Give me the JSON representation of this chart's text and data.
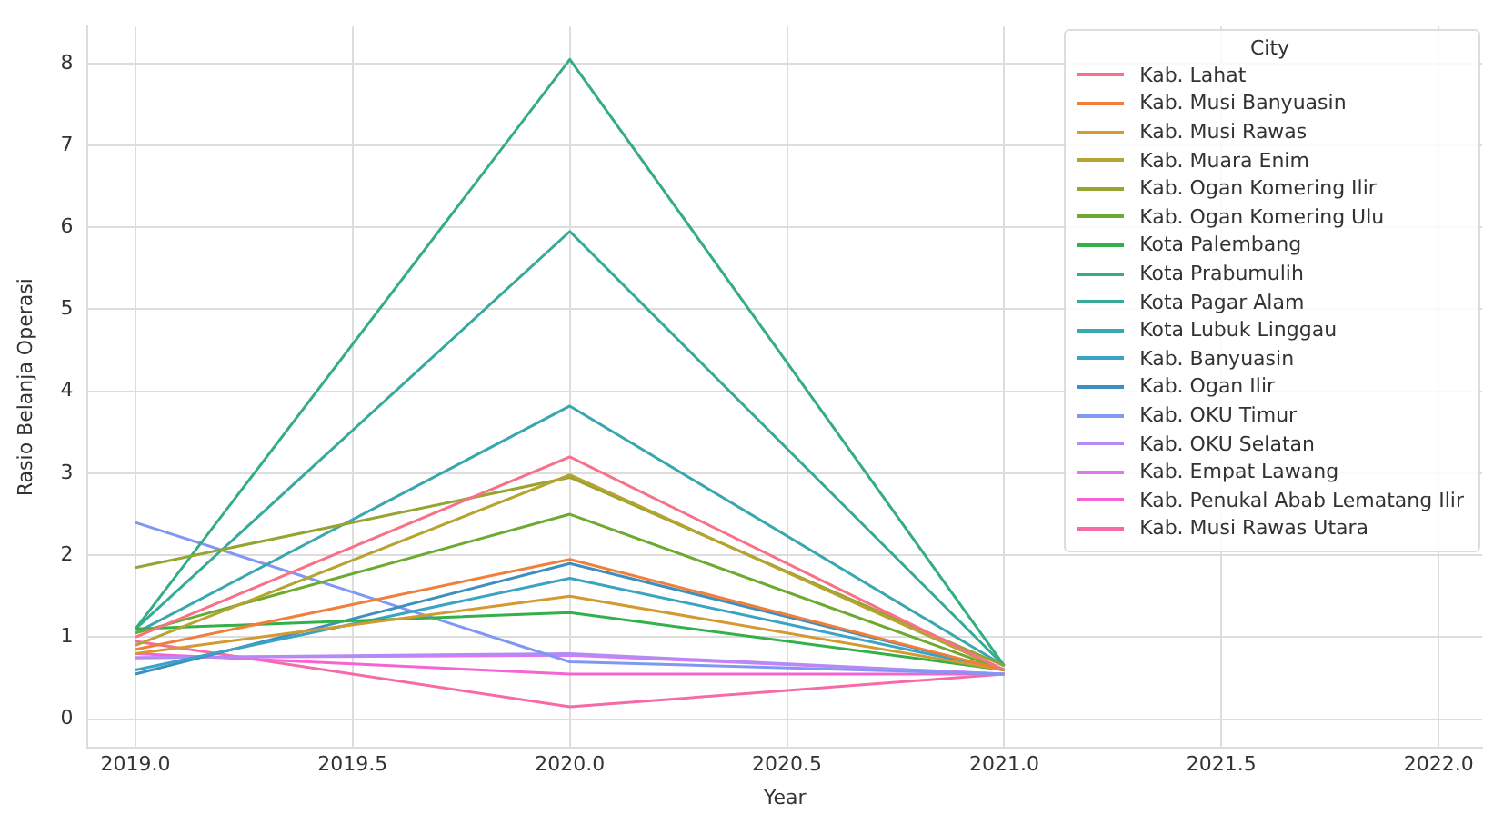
{
  "chart_data": {
    "type": "line",
    "xlabel": "Year",
    "ylabel": "Rasio Belanja Operasi",
    "legend_title": "City",
    "legend": "top right",
    "grid": true,
    "marker": "none",
    "line_style": "solid",
    "x": [
      2019,
      2020,
      2021
    ],
    "xlim": [
      2018.89,
      2022.1
    ],
    "xticks": [
      {
        "value": 2019,
        "label": "2019.0"
      },
      {
        "value": 2019.5,
        "label": "2019.5"
      },
      {
        "value": 2020,
        "label": "2020.0"
      },
      {
        "value": 2020.5,
        "label": "2020.5"
      },
      {
        "value": 2021,
        "label": "2021.0"
      },
      {
        "value": 2021.5,
        "label": "2021.5"
      },
      {
        "value": 2022,
        "label": "2022.0"
      }
    ],
    "ylim": [
      -0.35,
      8.45
    ],
    "yticks": [
      0,
      1,
      2,
      3,
      4,
      5,
      6,
      7,
      8
    ],
    "series": [
      {
        "name": "Kab. Lahat",
        "color": "#f77189",
        "values": [
          1.0,
          3.2,
          0.6
        ]
      },
      {
        "name": "Kab. Musi Banyuasin",
        "color": "#f07f3c",
        "values": [
          0.85,
          1.95,
          0.6
        ]
      },
      {
        "name": "Kab. Musi Rawas",
        "color": "#d39a32",
        "values": [
          0.8,
          1.5,
          0.6
        ]
      },
      {
        "name": "Kab. Muara Enim",
        "color": "#b5a431",
        "values": [
          0.9,
          2.98,
          0.6
        ]
      },
      {
        "name": "Kab. Ogan Komering Ilir",
        "color": "#97a431",
        "values": [
          1.85,
          2.95,
          0.65
        ]
      },
      {
        "name": "Kab. Ogan Komering Ulu",
        "color": "#6daa31",
        "values": [
          1.05,
          2.5,
          0.6
        ]
      },
      {
        "name": "Kota Palembang",
        "color": "#33b04a",
        "values": [
          1.1,
          1.3,
          0.6
        ]
      },
      {
        "name": "Kota Prabumulih",
        "color": "#35ad82",
        "values": [
          1.1,
          8.05,
          0.65
        ]
      },
      {
        "name": "Kota Pagar Alam",
        "color": "#37aa9a",
        "values": [
          1.1,
          5.95,
          0.65
        ]
      },
      {
        "name": "Kota Lubuk Linggau",
        "color": "#39a7ae",
        "values": [
          1.05,
          3.82,
          0.65
        ]
      },
      {
        "name": "Kab. Banyuasin",
        "color": "#3ba3c4",
        "values": [
          0.6,
          1.72,
          0.6
        ]
      },
      {
        "name": "Kab. Ogan Ilir",
        "color": "#3d8fc0",
        "values": [
          0.55,
          1.9,
          0.6
        ]
      },
      {
        "name": "Kab. OKU Timur",
        "color": "#8097f4",
        "values": [
          2.4,
          0.7,
          0.55
        ]
      },
      {
        "name": "Kab. OKU Selatan",
        "color": "#b48bf4",
        "values": [
          0.75,
          0.8,
          0.55
        ]
      },
      {
        "name": "Kab. Empat Lawang",
        "color": "#e176f4",
        "values": [
          0.75,
          0.78,
          0.55
        ]
      },
      {
        "name": "Kab. Penukal Abab Lematang Ilir",
        "color": "#f564d4",
        "values": [
          0.8,
          0.55,
          0.55
        ]
      },
      {
        "name": "Kab. Musi Rawas Utara",
        "color": "#f66ba6",
        "values": [
          0.95,
          0.15,
          0.55
        ]
      }
    ]
  }
}
